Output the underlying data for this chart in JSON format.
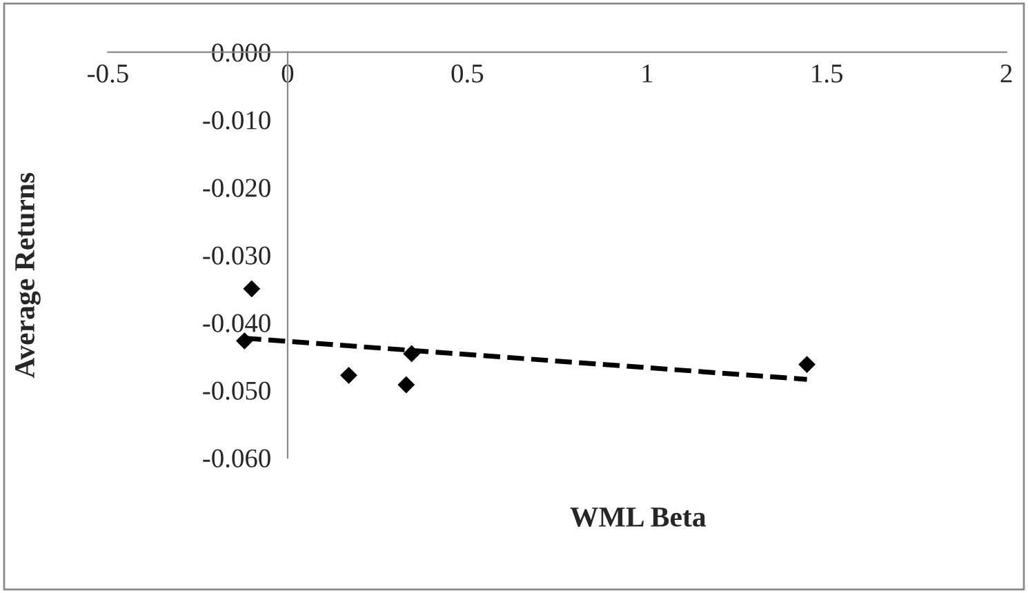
{
  "chart_data": {
    "type": "scatter",
    "xlabel": "WML Beta",
    "ylabel": "Average Returns",
    "xlim": [
      -0.5,
      2
    ],
    "xticks": [
      -0.5,
      0,
      0.5,
      1,
      1.5,
      2
    ],
    "ylim": [
      -0.06,
      0
    ],
    "yticks": [
      {
        "value": 0,
        "label": "0.000"
      },
      {
        "value": -0.01,
        "label": "-0.010"
      },
      {
        "value": -0.02,
        "label": "-0.020"
      },
      {
        "value": -0.03,
        "label": "-0.030"
      },
      {
        "value": -0.04,
        "label": "-0.040"
      },
      {
        "value": -0.05,
        "label": "-0.050"
      },
      {
        "value": -0.06,
        "label": "-0.060"
      }
    ],
    "grid": false,
    "legend": false,
    "series": [
      {
        "marker": "diamond",
        "color": "#000000",
        "x": [
          -0.1,
          -0.12,
          0.17,
          0.33,
          0.345,
          1.445
        ],
        "values": [
          -0.035,
          -0.0427,
          -0.0478,
          -0.0492,
          -0.0446,
          -0.0462
        ]
      },
      {
        "type": "line",
        "color": "#000000",
        "line_style": "dashed",
        "x": [
          -0.12,
          1.445
        ],
        "values": [
          -0.0423,
          -0.0484
        ]
      }
    ]
  }
}
